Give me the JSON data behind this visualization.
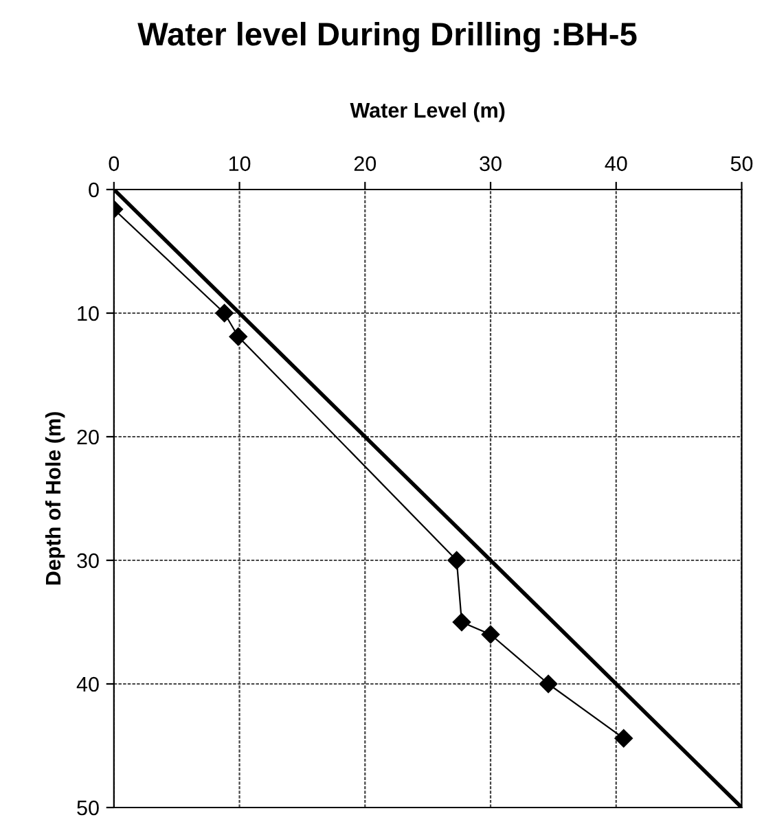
{
  "chart_data": {
    "type": "line",
    "title": "Water level During Drilling :BH-5",
    "xlabel": "Water Level (m)",
    "ylabel": "Depth of Hole (m)",
    "xlim": [
      0,
      50
    ],
    "xticks": [
      0,
      10,
      20,
      30,
      40,
      50
    ],
    "ylim": [
      50,
      0
    ],
    "yticks": [
      0,
      10,
      20,
      30,
      40,
      50
    ],
    "grid": true,
    "series": [
      {
        "color": "#000000",
        "marker": "diamond",
        "x": [
          0,
          8.8,
          9.9,
          27.3,
          27.7,
          30,
          34.6,
          40.6
        ],
        "values": [
          1.6,
          10,
          11.9,
          30,
          35,
          36,
          40,
          44.4
        ]
      },
      {
        "color": "#000000",
        "marker": "none",
        "x": [
          0,
          50
        ],
        "values": [
          0,
          50
        ]
      }
    ]
  }
}
